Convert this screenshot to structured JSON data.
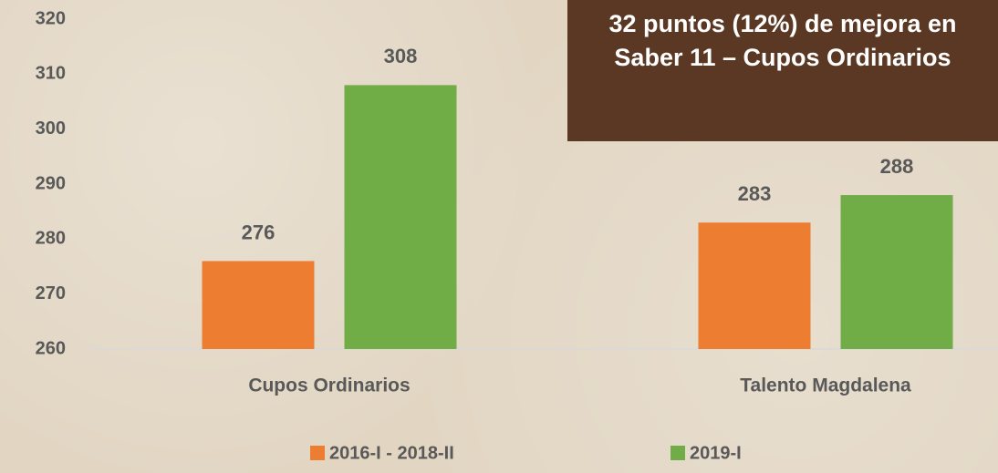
{
  "chart_data": {
    "type": "bar",
    "annotation": "32 puntos (12%) de mejora en Saber 11 – Cupos Ordinarios",
    "categories": [
      "Cupos Ordinarios",
      "Talento Magdalena"
    ],
    "series": [
      {
        "name": "2016-I - 2018-II",
        "color": "#ed7d31",
        "values": [
          276,
          283
        ]
      },
      {
        "name": "2019-I",
        "color": "#70ad47",
        "values": [
          308,
          288
        ]
      }
    ],
    "ylim": [
      260,
      320
    ],
    "yticks": [
      260,
      270,
      280,
      290,
      300,
      310,
      320
    ],
    "grid": false
  }
}
